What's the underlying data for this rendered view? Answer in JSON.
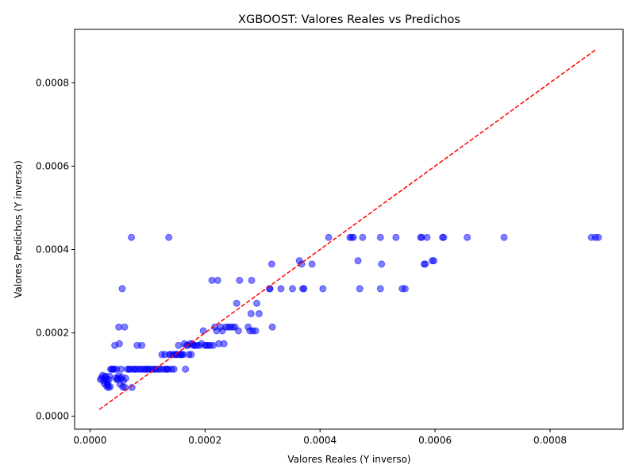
{
  "chart_data": {
    "type": "scatter",
    "title": "XGBOOST: Valores Reales vs Predichos",
    "xlabel": "Valores Reales (Y inverso)",
    "ylabel": "Valores Predichos (Y inverso)",
    "xlim": [
      -2.68e-05,
      0.000927
    ],
    "ylim": [
      -3.1e-05,
      0.000928
    ],
    "x_ticks": [
      0.0,
      0.0002,
      0.0004,
      0.0006,
      0.0008
    ],
    "y_ticks": [
      0.0,
      0.0002,
      0.0004,
      0.0006,
      0.0008
    ],
    "x_tick_labels": [
      "0.0000",
      "0.0002",
      "0.0004",
      "0.0006",
      "0.0008"
    ],
    "y_tick_labels": [
      "0.0000",
      "0.0002",
      "0.0004",
      "0.0006",
      "0.0008"
    ],
    "grid": false,
    "point_color": "#0000ff",
    "point_alpha": 0.5,
    "reference_line": {
      "style": "dashed",
      "color": "#ff0000",
      "x": [
        1.6e-05,
        0.00088
      ],
      "y": [
        1.6e-05,
        0.00088
      ]
    },
    "points": [
      [
        1.8e-05,
        8.8e-05
      ],
      [
        2e-05,
        9.2e-05
      ],
      [
        2.2e-05,
        9.8e-05
      ],
      [
        2.4e-05,
        8.5e-05
      ],
      [
        2.5e-05,
        7.8e-05
      ],
      [
        2.6e-05,
        9.4e-05
      ],
      [
        2.7e-05,
        9.6e-05
      ],
      [
        2.8e-05,
        8.8e-05
      ],
      [
        2.9e-05,
        7.2e-05
      ],
      [
        3e-05,
        8.2e-05
      ],
      [
        3.1e-05,
        7.5e-05
      ],
      [
        3.2e-05,
        6.9e-05
      ],
      [
        3.3e-05,
        8.8e-05
      ],
      [
        3.4e-05,
        9.6e-05
      ],
      [
        3.5e-05,
        7.1e-05
      ],
      [
        3.6e-05,
        0.000113
      ],
      [
        3.8e-05,
        0.000113
      ],
      [
        4e-05,
        0.000113
      ],
      [
        4.2e-05,
        0.000113
      ],
      [
        4.3e-05,
        0.00017
      ],
      [
        4.5e-05,
        9.2e-05
      ],
      [
        4.6e-05,
        0.000113
      ],
      [
        4.7e-05,
        8.8e-05
      ],
      [
        4.8e-05,
        9e-05
      ],
      [
        5e-05,
        9.7e-05
      ],
      [
        5e-05,
        0.000214
      ],
      [
        5.1e-05,
        0.000174
      ],
      [
        5.2e-05,
        7.7e-05
      ],
      [
        5.3e-05,
        9e-05
      ],
      [
        5.4e-05,
        0.000113
      ],
      [
        5.5e-05,
        9.4e-05
      ],
      [
        5.6e-05,
        0.000306
      ],
      [
        5.7e-05,
        7e-05
      ],
      [
        5.8e-05,
        8.5e-05
      ],
      [
        6e-05,
        0.000214
      ],
      [
        6.1e-05,
        6.9e-05
      ],
      [
        6.2e-05,
        9.1e-05
      ],
      [
        6.5e-05,
        0.000113
      ],
      [
        6.8e-05,
        0.000113
      ],
      [
        7e-05,
        0.000113
      ],
      [
        7.2e-05,
        0.000429
      ],
      [
        7.3e-05,
        6.9e-05
      ],
      [
        7.5e-05,
        0.000113
      ],
      [
        7.8e-05,
        0.000113
      ],
      [
        8e-05,
        0.000113
      ],
      [
        8.2e-05,
        0.00017
      ],
      [
        8.5e-05,
        0.000113
      ],
      [
        8.8e-05,
        0.000113
      ],
      [
        9e-05,
        0.00017
      ],
      [
        9.2e-05,
        0.000113
      ],
      [
        9.5e-05,
        0.000113
      ],
      [
        9.8e-05,
        0.000113
      ],
      [
        0.0001,
        0.000113
      ],
      [
        0.000103,
        0.000113
      ],
      [
        0.000106,
        0.000113
      ],
      [
        0.00011,
        0.000113
      ],
      [
        0.000113,
        0.000113
      ],
      [
        0.000116,
        0.000113
      ],
      [
        0.00012,
        0.000113
      ],
      [
        0.000123,
        0.000113
      ],
      [
        0.000125,
        0.000148
      ],
      [
        0.000128,
        0.000113
      ],
      [
        0.00013,
        0.000148
      ],
      [
        0.000132,
        0.000113
      ],
      [
        0.000134,
        0.000113
      ],
      [
        0.000136,
        0.000113
      ],
      [
        0.000137,
        0.000429
      ],
      [
        0.000138,
        0.000148
      ],
      [
        0.00014,
        0.000148
      ],
      [
        0.000142,
        0.000113
      ],
      [
        0.000144,
        0.000148
      ],
      [
        0.000146,
        0.000113
      ],
      [
        0.000148,
        0.000148
      ],
      [
        0.00015,
        0.000148
      ],
      [
        0.000152,
        0.000148
      ],
      [
        0.000154,
        0.00017
      ],
      [
        0.000156,
        0.000148
      ],
      [
        0.000158,
        0.000148
      ],
      [
        0.00016,
        0.000148
      ],
      [
        0.000162,
        0.000148
      ],
      [
        0.000164,
        0.000174
      ],
      [
        0.000166,
        0.000113
      ],
      [
        0.000168,
        0.00017
      ],
      [
        0.00017,
        0.00017
      ],
      [
        0.000172,
        0.000148
      ],
      [
        0.000174,
        0.000174
      ],
      [
        0.000176,
        0.000148
      ],
      [
        0.000178,
        0.000174
      ],
      [
        0.00018,
        0.00017
      ],
      [
        0.000182,
        0.00017
      ],
      [
        0.000186,
        0.00017
      ],
      [
        0.00019,
        0.00017
      ],
      [
        0.000194,
        0.000174
      ],
      [
        0.000197,
        0.000205
      ],
      [
        0.0002,
        0.00017
      ],
      [
        0.000203,
        0.00017
      ],
      [
        0.000206,
        0.00017
      ],
      [
        0.000209,
        0.00017
      ],
      [
        0.000212,
        0.000326
      ],
      [
        0.000214,
        0.00017
      ],
      [
        0.000217,
        0.000214
      ],
      [
        0.00022,
        0.000205
      ],
      [
        0.000222,
        0.000326
      ],
      [
        0.000224,
        0.000174
      ],
      [
        0.000227,
        0.000214
      ],
      [
        0.00023,
        0.000205
      ],
      [
        0.000233,
        0.000174
      ],
      [
        0.000236,
        0.000214
      ],
      [
        0.00024,
        0.000214
      ],
      [
        0.000244,
        0.000214
      ],
      [
        0.000248,
        0.000214
      ],
      [
        0.000252,
        0.000214
      ],
      [
        0.000255,
        0.000271
      ],
      [
        0.000258,
        0.000205
      ],
      [
        0.00026,
        0.000326
      ],
      [
        0.000275,
        0.000214
      ],
      [
        0.000278,
        0.000205
      ],
      [
        0.00028,
        0.000246
      ],
      [
        0.000281,
        0.000326
      ],
      [
        0.000283,
        0.000205
      ],
      [
        0.000288,
        0.000205
      ],
      [
        0.00029,
        0.000271
      ],
      [
        0.000294,
        0.000246
      ],
      [
        0.000312,
        0.000306
      ],
      [
        0.000313,
        0.000306
      ],
      [
        0.000316,
        0.000365
      ],
      [
        0.000317,
        0.000214
      ],
      [
        0.000332,
        0.000306
      ],
      [
        0.000352,
        0.000306
      ],
      [
        0.000364,
        0.000373
      ],
      [
        0.000368,
        0.000365
      ],
      [
        0.00037,
        0.000306
      ],
      [
        0.000372,
        0.000306
      ],
      [
        0.000386,
        0.000365
      ],
      [
        0.000405,
        0.000306
      ],
      [
        0.000415,
        0.000429
      ],
      [
        0.000452,
        0.000429
      ],
      [
        0.000455,
        0.000429
      ],
      [
        0.000458,
        0.000429
      ],
      [
        0.000466,
        0.000373
      ],
      [
        0.000469,
        0.000306
      ],
      [
        0.000474,
        0.000429
      ],
      [
        0.000505,
        0.000429
      ],
      [
        0.000505,
        0.000306
      ],
      [
        0.000507,
        0.000365
      ],
      [
        0.000532,
        0.000429
      ],
      [
        0.000543,
        0.000306
      ],
      [
        0.000548,
        0.000306
      ],
      [
        0.000575,
        0.000429
      ],
      [
        0.000577,
        0.000429
      ],
      [
        0.000581,
        0.000365
      ],
      [
        0.000583,
        0.000365
      ],
      [
        0.000586,
        0.000429
      ],
      [
        0.000595,
        0.000373
      ],
      [
        0.000598,
        0.000373
      ],
      [
        0.000613,
        0.000429
      ],
      [
        0.000615,
        0.000429
      ],
      [
        0.000656,
        0.000429
      ],
      [
        0.00072,
        0.000429
      ],
      [
        0.000872,
        0.000429
      ],
      [
        0.000879,
        0.000429
      ],
      [
        0.000884,
        0.000429
      ]
    ]
  }
}
